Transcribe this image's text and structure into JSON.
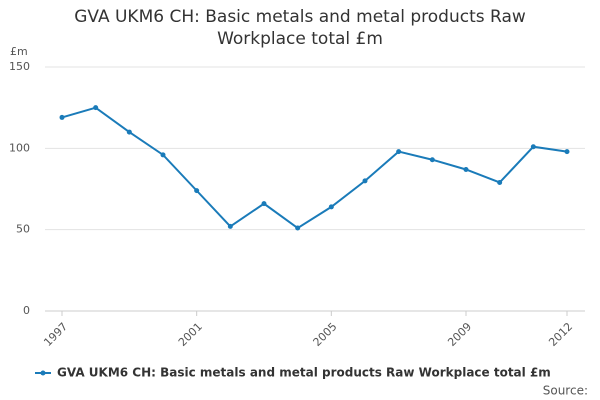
{
  "chart_data": {
    "type": "line",
    "title": "GVA UKM6 CH: Basic metals and metal products Raw Workplace total £m",
    "y_label": "£m",
    "source": "Source:",
    "x": [
      1997,
      1998,
      1999,
      2000,
      2001,
      2002,
      2003,
      2004,
      2005,
      2006,
      2007,
      2008,
      2009,
      2010,
      2011,
      2012
    ],
    "series": [
      {
        "name": "GVA UKM6 CH: Basic metals and metal products Raw Workplace total £m",
        "color": "#1a7bb9",
        "values": [
          119,
          125,
          110,
          96,
          74,
          52,
          66,
          51,
          64,
          80,
          98,
          93,
          87,
          79,
          101,
          98
        ]
      }
    ],
    "xlim": [
      1997,
      2012
    ],
    "xticks": [
      1997,
      2001,
      2005,
      2009,
      2012
    ],
    "ylim": [
      0,
      150
    ],
    "yticks": [
      0,
      50,
      100,
      150
    ],
    "grid": true
  }
}
